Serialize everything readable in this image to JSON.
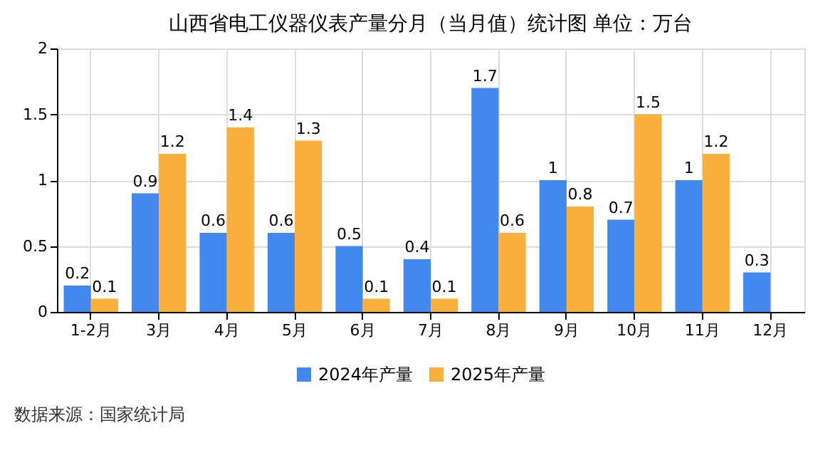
{
  "chart_data": {
    "type": "bar",
    "title": "山西省电工仪器仪表产量分月（当月值）统计图 单位：万台",
    "categories": [
      "1-2月",
      "3月",
      "4月",
      "5月",
      "6月",
      "7月",
      "8月",
      "9月",
      "10月",
      "11月",
      "12月"
    ],
    "series": [
      {
        "name": "2024年产量",
        "color": "#4189ee",
        "values": [
          0.2,
          0.9,
          0.6,
          0.6,
          0.5,
          0.4,
          1.7,
          1,
          0.7,
          1,
          0.3
        ]
      },
      {
        "name": "2025年产量",
        "color": "#fbb03b",
        "values": [
          0.1,
          1.2,
          1.4,
          1.3,
          0.1,
          0.1,
          0.6,
          0.8,
          1.5,
          1.2,
          null
        ]
      }
    ],
    "ylim": [
      0,
      2
    ],
    "yticks": [
      0,
      0.5,
      1,
      1.5,
      2
    ],
    "grid": true,
    "legend": "bottom",
    "data_labels": true,
    "annotations": [
      "数据来源：国家统计局"
    ]
  }
}
